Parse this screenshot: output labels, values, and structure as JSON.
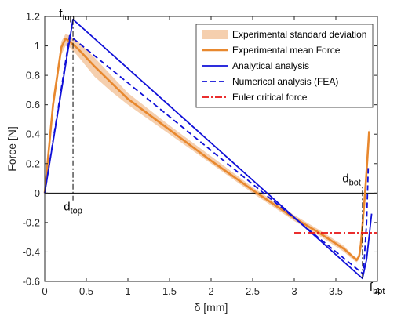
{
  "chart_data": {
    "type": "line",
    "xlabel": "δ [mm]",
    "ylabel": "Force [N]",
    "xlim": [
      0,
      4
    ],
    "ylim": [
      -0.6,
      1.2
    ],
    "xticks": [
      "0",
      "0.5",
      "1",
      "1.5",
      "2",
      "2.5",
      "3",
      "3.5",
      "4"
    ],
    "yticks": [
      "-0.6",
      "-0.4",
      "-0.2",
      "0",
      "0.2",
      "0.4",
      "0.6",
      "0.8",
      "1",
      "1.2"
    ],
    "legend_position": "top-right",
    "series": [
      {
        "name": "Experimental standard deviation",
        "style": "band",
        "color": "#f5cfae",
        "x": [
          0,
          0.1,
          0.2,
          0.25,
          0.3,
          0.4,
          0.6,
          0.8,
          1.0,
          1.5,
          2.0,
          2.5,
          3.0,
          3.3,
          3.6,
          3.7,
          3.75,
          3.78,
          3.8,
          3.82,
          3.84,
          3.86,
          3.88,
          3.9
        ],
        "lower": [
          0,
          0.55,
          0.94,
          1.0,
          0.99,
          0.93,
          0.79,
          0.69,
          0.6,
          0.4,
          0.2,
          0.0,
          -0.19,
          -0.29,
          -0.4,
          -0.45,
          -0.47,
          -0.45,
          -0.37,
          -0.24,
          -0.1,
          0.05,
          0.22,
          0.4
        ],
        "upper": [
          0,
          0.65,
          1.03,
          1.08,
          1.07,
          1.03,
          0.92,
          0.8,
          0.68,
          0.46,
          0.25,
          0.04,
          -0.15,
          -0.25,
          -0.36,
          -0.42,
          -0.44,
          -0.41,
          -0.33,
          -0.2,
          -0.06,
          0.09,
          0.26,
          0.44
        ]
      },
      {
        "name": "Experimental mean Force",
        "style": "solid",
        "color": "#e8882e",
        "x": [
          0,
          0.1,
          0.2,
          0.25,
          0.3,
          0.4,
          0.6,
          0.8,
          1.0,
          1.5,
          2.0,
          2.5,
          3.0,
          3.3,
          3.6,
          3.7,
          3.75,
          3.78,
          3.8,
          3.82,
          3.84,
          3.86,
          3.88,
          3.9
        ],
        "y": [
          0,
          0.6,
          0.99,
          1.05,
          1.03,
          0.98,
          0.86,
          0.75,
          0.64,
          0.43,
          0.22,
          0.02,
          -0.17,
          -0.27,
          -0.38,
          -0.43,
          -0.455,
          -0.43,
          -0.35,
          -0.22,
          -0.08,
          0.07,
          0.24,
          0.42
        ]
      },
      {
        "name": "Analytical analysis",
        "style": "solid",
        "color": "#1010d8",
        "x": [
          0,
          0.34,
          3.82,
          3.87,
          3.93
        ],
        "y": [
          0,
          1.18,
          -0.58,
          -0.45,
          -0.14
        ]
      },
      {
        "name": "Numerical analysis (FEA)",
        "style": "dashed",
        "color": "#1010d8",
        "x": [
          0,
          0.3,
          3.83,
          3.87,
          3.89
        ],
        "y": [
          0,
          1.07,
          -0.55,
          -0.2,
          0.18
        ]
      },
      {
        "name": "Euler critical force",
        "style": "dashdot",
        "color": "#e81010",
        "x": [
          3.0,
          4.0
        ],
        "y": [
          -0.27,
          -0.27
        ]
      }
    ],
    "annotations": [
      {
        "base": "f",
        "sub": "top",
        "x": 0.34,
        "y": 1.18
      },
      {
        "base": "d",
        "sub": "top",
        "x": 0.34,
        "y": 0
      },
      {
        "base": "d",
        "sub": "bot",
        "x": 3.82,
        "y": 0
      },
      {
        "base": "f",
        "sub": "bot",
        "x": 3.82,
        "y": -0.58
      }
    ],
    "marker_lines": [
      {
        "x": 0.34,
        "y_from": 1.18,
        "y_to": -0.05
      },
      {
        "x": 3.82,
        "y_from": -0.58,
        "y_to": 0.05
      }
    ]
  }
}
